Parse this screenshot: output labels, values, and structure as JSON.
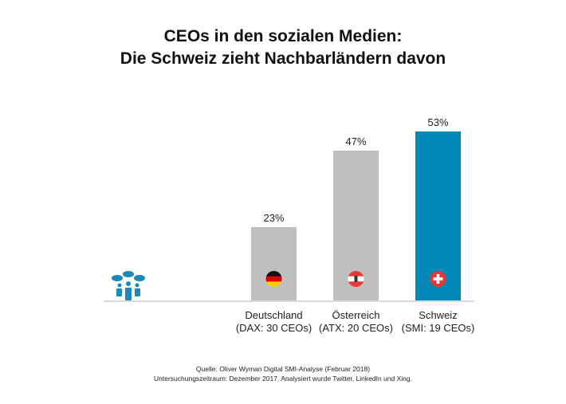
{
  "title_line1": "CEOs in den sozialen Medien:",
  "title_line2": "Die Schweiz zieht Nachbarländern davon",
  "chart_data": {
    "type": "bar",
    "categories": [
      "Deutschland",
      "Österreich",
      "Schweiz"
    ],
    "subcategories": [
      "(DAX: 30 CEOs)",
      "(ATX:  20 CEOs)",
      "(SMI: 19 CEOs)"
    ],
    "values": [
      23,
      47,
      53
    ],
    "data_labels": [
      "23%",
      "47%",
      "53%"
    ],
    "unit": "%",
    "ylim": [
      0,
      60
    ],
    "grid": false,
    "bar_colors": [
      "#bfbfbf",
      "#bfbfbf",
      "#0089b6"
    ],
    "flag_icons": [
      "germany-flag-icon",
      "austria-flag-icon",
      "switzerland-flag-icon"
    ]
  },
  "icon": "people-chat-icon",
  "icon_color": "#1a8ab8",
  "source_line1": "Quelle: Oliver Wyman Digital SMI-Analyse (Februar 2018)",
  "source_line2": "Untersuchungszeitraum:  Dezember  2017. Analysiert wurde Twitter, LinkedIn und Xing."
}
